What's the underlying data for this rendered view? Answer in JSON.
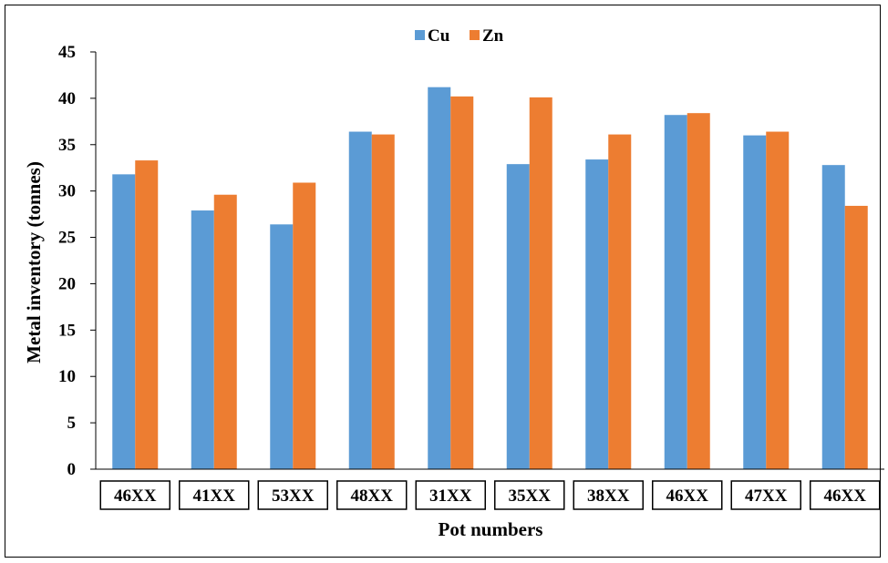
{
  "chart_data": {
    "type": "bar",
    "categories": [
      "46XX",
      "41XX",
      "53XX",
      "48XX",
      "31XX",
      "35XX",
      "38XX",
      "46XX",
      "47XX",
      "46XX"
    ],
    "series": [
      {
        "name": "Cu",
        "color": "#5B9BD5",
        "values": [
          31.8,
          27.9,
          26.4,
          36.4,
          41.2,
          32.9,
          33.4,
          38.2,
          36.0,
          32.8
        ]
      },
      {
        "name": "Zn",
        "color": "#ED7D31",
        "values": [
          33.3,
          29.6,
          30.9,
          36.1,
          40.2,
          40.1,
          36.1,
          38.4,
          36.4,
          28.4
        ]
      }
    ],
    "title": "",
    "xlabel": "Pot numbers",
    "ylabel": "Metal inventory (tonnes)",
    "ylim": [
      0,
      45
    ],
    "yticks": [
      0,
      5,
      10,
      15,
      20,
      25,
      30,
      35,
      40,
      45
    ],
    "grid": false,
    "legend_position": "top-center"
  }
}
